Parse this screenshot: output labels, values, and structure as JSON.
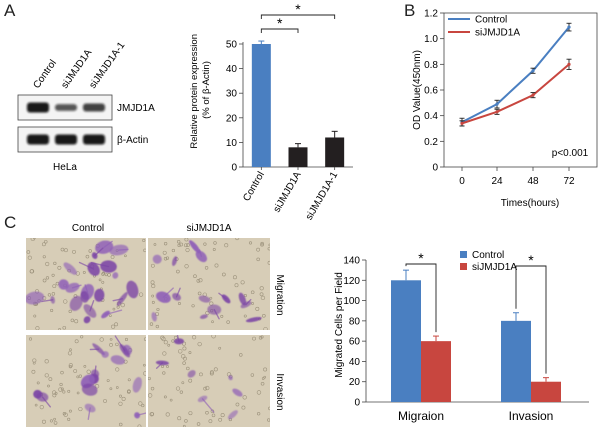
{
  "panels": {
    "a": "A",
    "b": "B",
    "c": "C"
  },
  "western_blot": {
    "lanes": [
      "Control",
      "siJMJD1A",
      "siJMJD1A-1"
    ],
    "bands": [
      "JMJD1A",
      "β-Actin"
    ],
    "cell_line": "HeLa",
    "band_intensity": {
      "JMJD1A": [
        1.0,
        0.55,
        0.7
      ],
      "β-Actin": [
        1.0,
        1.0,
        1.0
      ]
    }
  },
  "micrographs": {
    "columns": [
      "Control",
      "siJMJD1A"
    ],
    "rows": [
      "Migration",
      "Invasion"
    ]
  },
  "colors": {
    "blue": "#4a7fc1",
    "red": "#c8463f",
    "black": "#231f20",
    "stain": "#7b45a6",
    "membrane": "#d7cdb7"
  },
  "chart_data": [
    {
      "id": "protein_expression",
      "type": "bar",
      "ylabel": "Relative protein expression (% of β-Actin)",
      "ylabel_lines": [
        "Relative protein expression",
        "(% of β-Actin)"
      ],
      "categories": [
        "Control",
        "siJMJD1A",
        "siJMJD1A-1"
      ],
      "values": [
        50,
        8,
        12
      ],
      "errors": [
        1.2,
        1.5,
        2.5
      ],
      "bar_colors": [
        "#4a7fc1",
        "#231f20",
        "#231f20"
      ],
      "ylim": [
        0,
        50
      ],
      "yticks": [
        0,
        10,
        20,
        30,
        40,
        50
      ],
      "significance": [
        {
          "from": 0,
          "to": 1,
          "label": "*"
        },
        {
          "from": 0,
          "to": 2,
          "label": "*"
        }
      ]
    },
    {
      "id": "od_growth",
      "type": "line",
      "xlabel": "Times(hours)",
      "ylabel": "OD Value(450nm)",
      "x": [
        0,
        24,
        48,
        72
      ],
      "series": [
        {
          "name": "Control",
          "values": [
            0.35,
            0.49,
            0.75,
            1.09
          ],
          "errors": [
            0.03,
            0.03,
            0.02,
            0.03
          ],
          "color": "#4a7fc1"
        },
        {
          "name": "siJMJD1A",
          "values": [
            0.34,
            0.43,
            0.56,
            0.8
          ],
          "errors": [
            0.02,
            0.02,
            0.02,
            0.04
          ],
          "color": "#c8463f"
        }
      ],
      "ylim": [
        0,
        1.2
      ],
      "yticks": [
        0,
        0.2,
        0.4,
        0.6,
        0.8,
        1.0,
        1.2
      ],
      "ytick_labels": [
        "0",
        "0.2",
        "0.4",
        "0.6",
        "0.8",
        "1.0",
        "1.2"
      ],
      "annotation": "p<0.001",
      "legend": "top-left"
    },
    {
      "id": "migrated_cells",
      "type": "bar",
      "ylabel": "Migrated Cells per Field",
      "categories": [
        "Migraion",
        "Invasion"
      ],
      "series": [
        {
          "name": "Control",
          "values": [
            120,
            80
          ],
          "errors": [
            10,
            8
          ],
          "color": "#4a7fc1"
        },
        {
          "name": "siJMJD1A",
          "values": [
            60,
            20
          ],
          "errors": [
            5,
            4
          ],
          "color": "#c8463f"
        }
      ],
      "ylim": [
        0,
        140
      ],
      "yticks": [
        0,
        20,
        40,
        60,
        80,
        100,
        120,
        140
      ],
      "significance": [
        {
          "group": 0,
          "label": "*"
        },
        {
          "group": 1,
          "label": "*"
        }
      ],
      "legend": "top"
    }
  ]
}
